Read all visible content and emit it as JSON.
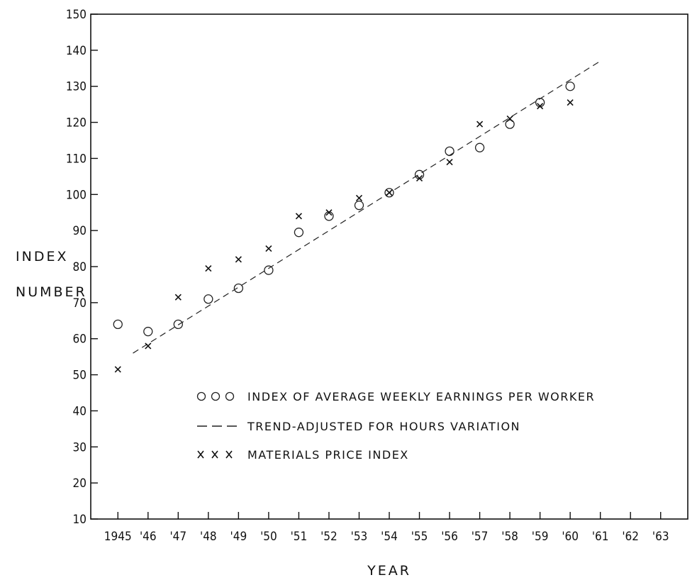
{
  "chart_data": {
    "type": "scatter",
    "title": "",
    "xlabel": "YEAR",
    "ylabel_lines": [
      "INDEX",
      "NUMBER"
    ],
    "x_tick_labels": [
      "1945",
      "'46",
      "'47",
      "'48",
      "'49",
      "'50",
      "'51",
      "'52",
      "'53",
      "'54",
      "'55",
      "'56",
      "'57",
      "'58",
      "'59",
      "'60",
      "'61",
      "'62",
      "'63"
    ],
    "x_ticks": [
      1945,
      1946,
      1947,
      1948,
      1949,
      1950,
      1951,
      1952,
      1953,
      1954,
      1955,
      1956,
      1957,
      1958,
      1959,
      1960,
      1961,
      1962,
      1963
    ],
    "y_ticks": [
      10,
      20,
      30,
      40,
      50,
      60,
      70,
      80,
      90,
      100,
      110,
      120,
      130,
      140,
      150
    ],
    "xlim": [
      1944.1,
      1963.9
    ],
    "ylim": [
      10,
      150
    ],
    "grid": false,
    "legend_position": "lower-right",
    "series": [
      {
        "name": "INDEX OF AVERAGE WEEKLY EARNINGS PER WORKER",
        "legend_symbol": "O O O",
        "marker": "circle",
        "x": [
          1945,
          1946,
          1947,
          1948,
          1949,
          1950,
          1951,
          1952,
          1953,
          1954,
          1955,
          1956,
          1957,
          1958,
          1959,
          1960
        ],
        "y": [
          64,
          62,
          64,
          71,
          74,
          79,
          89.5,
          94,
          97,
          100.5,
          105.5,
          112,
          113,
          119.5,
          125.5,
          130
        ]
      },
      {
        "name": "TREND-ADJUSTED FOR HOURS VARIATION",
        "legend_symbol": "- - -",
        "marker": "dashed-line",
        "x": [
          1945.5,
          1961
        ],
        "y": [
          56,
          137
        ]
      },
      {
        "name": "MATERIALS PRICE INDEX",
        "legend_symbol": "x x x",
        "marker": "x",
        "x": [
          1945,
          1946,
          1947,
          1948,
          1949,
          1950,
          1951,
          1952,
          1953,
          1954,
          1955,
          1956,
          1957,
          1958,
          1959,
          1960
        ],
        "y": [
          51.5,
          58,
          71.5,
          79.5,
          82,
          85,
          94,
          95,
          99,
          100.5,
          104.5,
          109,
          119.5,
          121,
          124.5,
          125.5
        ]
      }
    ]
  }
}
